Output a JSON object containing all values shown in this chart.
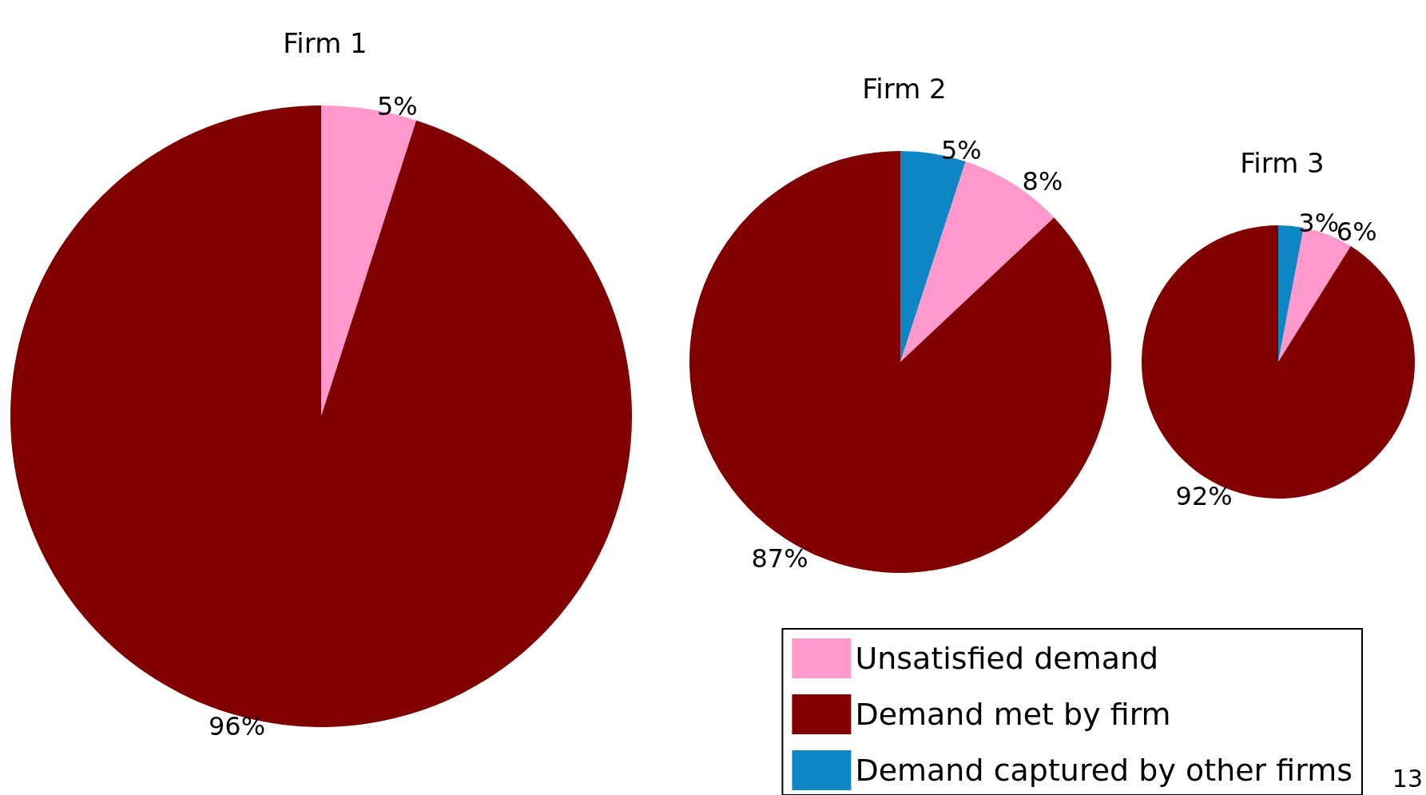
{
  "chart_data": {
    "type": "pie",
    "categories": [
      "Unsatisfied demand",
      "Demand met by firm",
      "Demand captured by other firms"
    ],
    "colors": [
      "#ff99cc",
      "#800000",
      "#0e86c4"
    ],
    "legend": "bottom right",
    "annotations": [
      "13"
    ],
    "series": [
      {
        "name": "Firm 1",
        "values": [
          5,
          96,
          null
        ],
        "value_labels": [
          "5%",
          "96%",
          null
        ]
      },
      {
        "name": "Firm 2",
        "values": [
          8,
          87,
          5
        ],
        "value_labels": [
          "8%",
          "87%",
          "5%"
        ]
      },
      {
        "name": "Firm 3",
        "values": [
          6,
          92,
          3
        ],
        "value_labels": [
          "6%",
          "92%",
          "3%"
        ]
      }
    ]
  }
}
